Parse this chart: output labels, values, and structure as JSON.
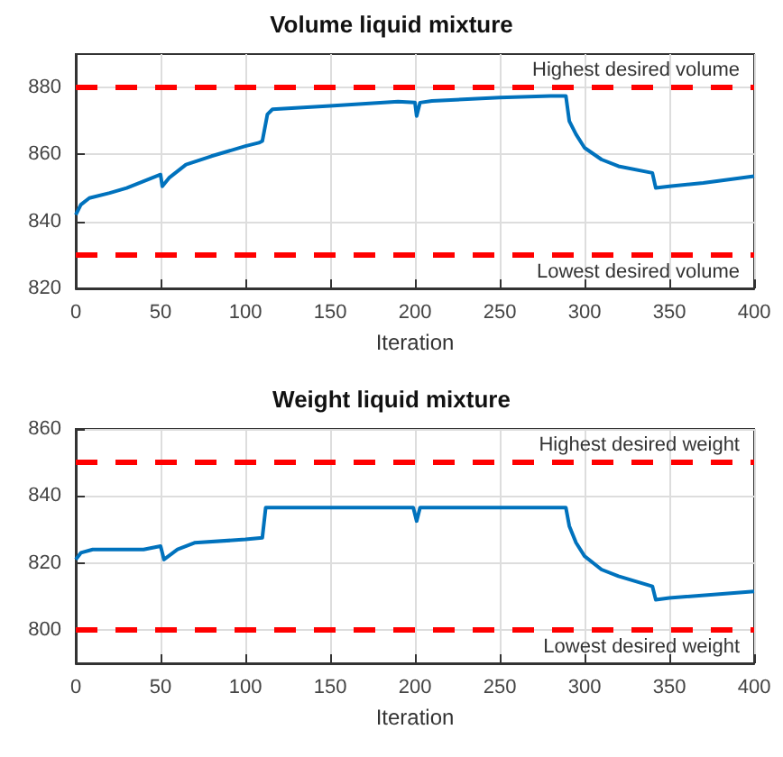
{
  "chart_data": [
    {
      "type": "line",
      "title": "Volume liquid mixture",
      "xlabel": "Iteration",
      "xlim": [
        0,
        400
      ],
      "xticks": [
        0,
        50,
        100,
        150,
        200,
        250,
        300,
        350,
        400
      ],
      "ylim": [
        820,
        890
      ],
      "yticks": [
        820,
        840,
        860,
        880
      ],
      "grid": true,
      "line_style": "solid",
      "marker": "none",
      "series": [
        {
          "color": "#0072bd",
          "x": [
            0,
            3,
            8,
            20,
            30,
            40,
            50,
            51,
            55,
            65,
            80,
            100,
            108,
            110,
            113,
            116,
            150,
            190,
            200,
            201,
            203,
            210,
            250,
            280,
            289,
            291,
            295,
            300,
            310,
            320,
            340,
            342,
            350,
            370,
            400
          ],
          "values": [
            842,
            845,
            847,
            848.5,
            850,
            852,
            854,
            850.5,
            853,
            857,
            859.5,
            862.5,
            863.5,
            864,
            872,
            873.5,
            874.5,
            875.8,
            875.5,
            871.5,
            875.5,
            876,
            877,
            877.5,
            877.5,
            870,
            866,
            862,
            858.5,
            856.5,
            854.5,
            850,
            850.5,
            851.5,
            853.5
          ]
        }
      ],
      "ref_lines": [
        {
          "axis": "y",
          "value": 880,
          "label": "Highest desired volume",
          "color": "#ff0000",
          "line_style": "dashed"
        },
        {
          "axis": "y",
          "value": 830,
          "label": "Lowest desired volume",
          "color": "#ff0000",
          "line_style": "dashed"
        }
      ]
    },
    {
      "type": "line",
      "title": "Weight liquid mixture",
      "xlabel": "Iteration",
      "xlim": [
        0,
        400
      ],
      "xticks": [
        0,
        50,
        100,
        150,
        200,
        250,
        300,
        350,
        400
      ],
      "ylim": [
        790,
        860
      ],
      "yticks": [
        800,
        820,
        840,
        860
      ],
      "grid": true,
      "line_style": "solid",
      "marker": "none",
      "series": [
        {
          "color": "#0072bd",
          "x": [
            0,
            3,
            10,
            40,
            50,
            52,
            60,
            70,
            100,
            110,
            112,
            150,
            199,
            201,
            203,
            250,
            289,
            291,
            295,
            300,
            310,
            320,
            340,
            342,
            350,
            400
          ],
          "values": [
            821,
            823,
            824,
            824,
            825,
            821,
            824,
            826,
            827,
            827.5,
            836.5,
            836.5,
            836.5,
            832.5,
            836.5,
            836.5,
            836.5,
            831,
            826,
            822,
            818,
            816,
            813,
            809,
            809.5,
            811.5
          ]
        }
      ],
      "ref_lines": [
        {
          "axis": "y",
          "value": 850,
          "label": "Highest desired weight",
          "color": "#ff0000",
          "line_style": "dashed"
        },
        {
          "axis": "y",
          "value": 800,
          "label": "Lowest desired weight",
          "color": "#ff0000",
          "line_style": "dashed"
        }
      ]
    }
  ]
}
